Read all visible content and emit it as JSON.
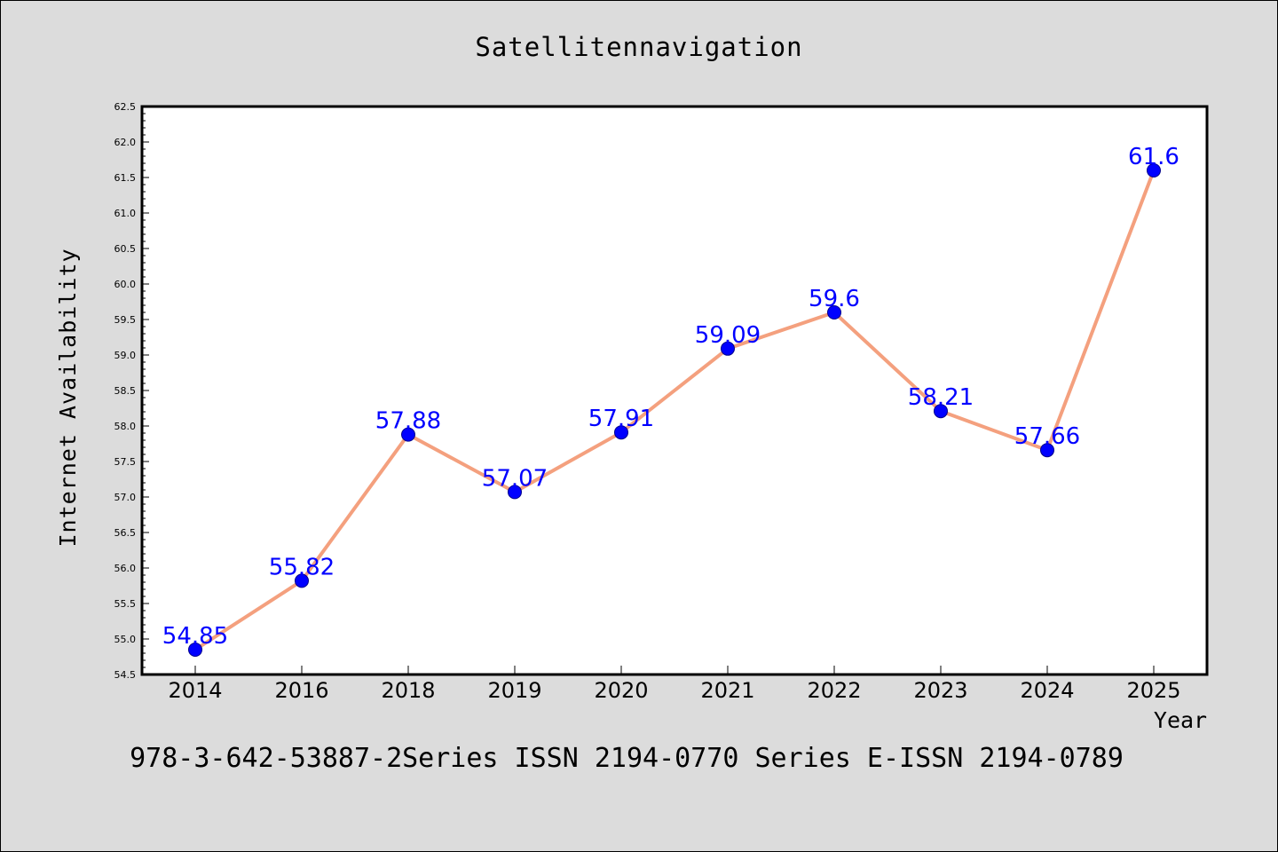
{
  "colors": {
    "background": "#dcdcdc",
    "plot_background": "#ffffff",
    "line": "#f4a07e",
    "marker": "#0000ff",
    "data_label": "#0000ff"
  },
  "footer": {
    "text": "978-3-642-53887-2Series ISSN 2194-0770 Series E-ISSN 2194-0789"
  },
  "chart_data": {
    "type": "line",
    "title": "Satellitennavigation",
    "xlabel": "Year",
    "ylabel": "Internet Availability",
    "categories": [
      "2014",
      "2016",
      "2018",
      "2019",
      "2020",
      "2021",
      "2022",
      "2023",
      "2024",
      "2025"
    ],
    "series": [
      {
        "values": [
          54.85,
          55.82,
          57.88,
          57.07,
          57.91,
          59.09,
          59.6,
          58.21,
          57.66,
          61.6
        ],
        "data_labels": [
          "54.85",
          "55.82",
          "57.88",
          "57.07",
          "57.91",
          "59.09",
          "59.6",
          "58.21",
          "57.66",
          "61.6"
        ]
      }
    ],
    "ylim": [
      54.5,
      62.5
    ],
    "yticks": [
      "54.5",
      "55.0",
      "55.5",
      "56.0",
      "56.5",
      "57.0",
      "57.5",
      "58.0",
      "58.5",
      "59.0",
      "59.5",
      "60.0",
      "60.5",
      "61.0",
      "61.5",
      "62.0",
      "62.5"
    ],
    "grid": false,
    "legend": "none"
  }
}
